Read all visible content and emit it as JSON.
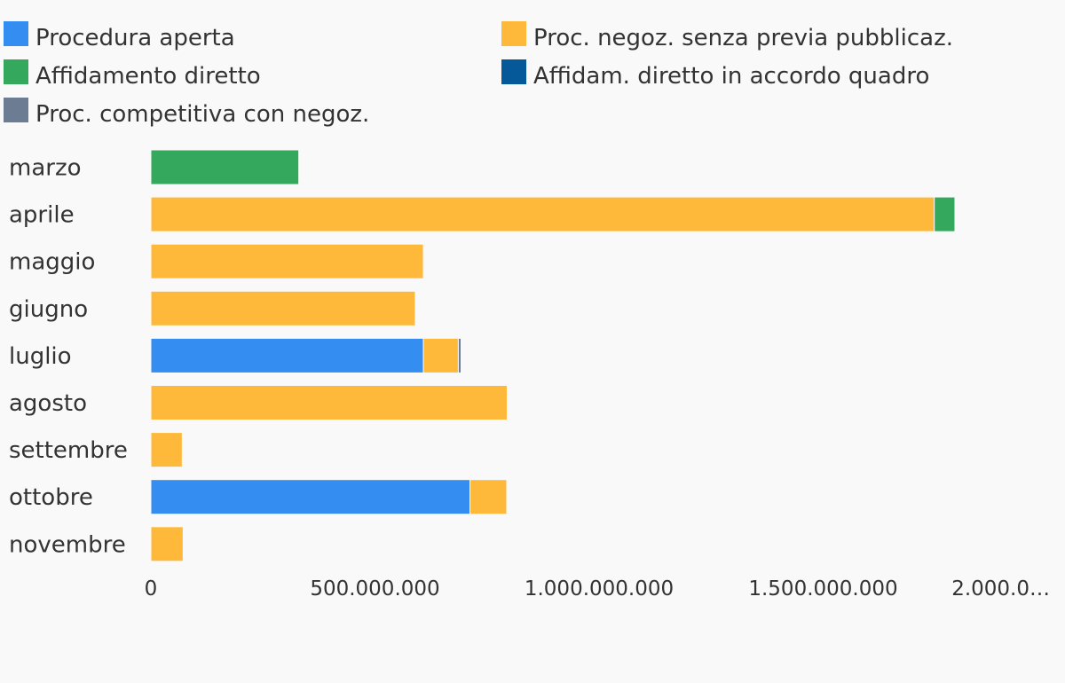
{
  "chart_data": {
    "type": "bar",
    "orientation": "horizontal",
    "stacked": true,
    "title": "",
    "xlabel": "",
    "ylabel": "",
    "xlim": [
      0,
      2000000000
    ],
    "grid": false,
    "legend_position": "top",
    "categories": [
      "marzo",
      "aprile",
      "maggio",
      "giugno",
      "luglio",
      "agosto",
      "settembre",
      "ottobre",
      "novembre"
    ],
    "tick_values": [
      0,
      500000000,
      1000000000,
      1500000000,
      2000000000
    ],
    "tick_labels": [
      "0",
      "500.000.000",
      "1.000.000.000",
      "1.500.000.000",
      "2.000.0…"
    ],
    "series": [
      {
        "name": "Procedura aperta",
        "color": "#348df0",
        "values": [
          0,
          0,
          0,
          0,
          608000000,
          0,
          0,
          712000000,
          0
        ]
      },
      {
        "name": "Proc. negoz. senza previa pubblicaz.",
        "color": "#ffb93a",
        "values": [
          0,
          1748000000,
          608000000,
          590000000,
          78000000,
          795000000,
          70000000,
          82000000,
          72000000
        ]
      },
      {
        "name": "Affidamento diretto",
        "color": "#34a85c",
        "values": [
          330000000,
          46000000,
          0,
          0,
          0,
          0,
          0,
          0,
          0
        ]
      },
      {
        "name": "Affidam. diretto in accordo quadro",
        "color": "#055999",
        "values": [
          0,
          0,
          0,
          0,
          0,
          0,
          0,
          0,
          0
        ]
      },
      {
        "name": "Proc. competitiva con negoz.",
        "color": "#6b7c93",
        "values": [
          0,
          0,
          0,
          0,
          6000000,
          0,
          0,
          0,
          0
        ]
      }
    ]
  }
}
